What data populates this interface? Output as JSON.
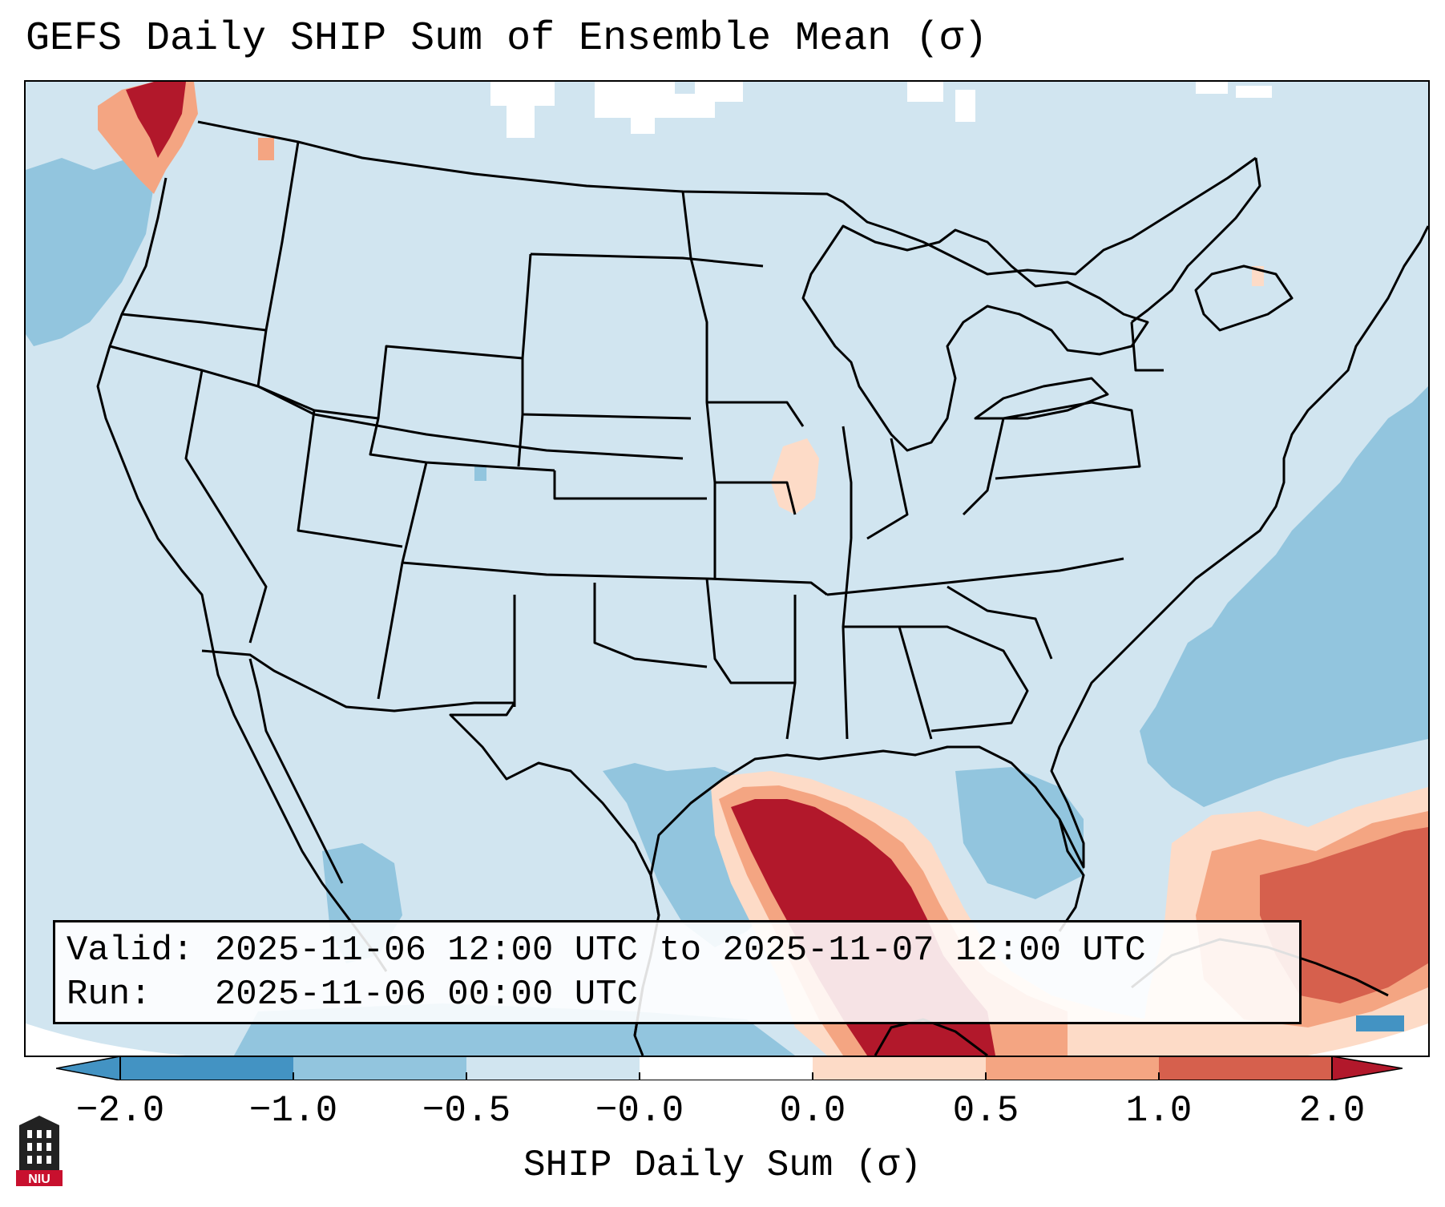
{
  "title": "GEFS Daily SHIP Sum of Ensemble Mean (σ)",
  "annotation": {
    "valid": "Valid: 2025-11-06 12:00 UTC to 2025-11-07 12:00 UTC",
    "run": "Run:   2025-11-06 00:00 UTC"
  },
  "colorbar": {
    "label": "SHIP Daily Sum (σ)",
    "ticks": [
      "−2.0",
      "−1.0",
      "−0.5",
      "−0.0",
      "0.0",
      "0.5",
      "1.0",
      "2.0"
    ],
    "colors": [
      "#4393c3",
      "#92c5de",
      "#d1e5f0",
      "#fddbc7",
      "#f4a582",
      "#d6604d",
      "#b2182b"
    ],
    "extend": "both"
  },
  "logo": {
    "text": "NIU",
    "color": "#c8102e"
  },
  "colors": {
    "background_field": "#d1e5f0",
    "ocean_low": "#92c5de",
    "ocean_lower": "#4393c3",
    "high_1": "#fddbc7",
    "high_2": "#f4a582",
    "high_3": "#d6604d",
    "high_4": "#b2182b"
  }
}
